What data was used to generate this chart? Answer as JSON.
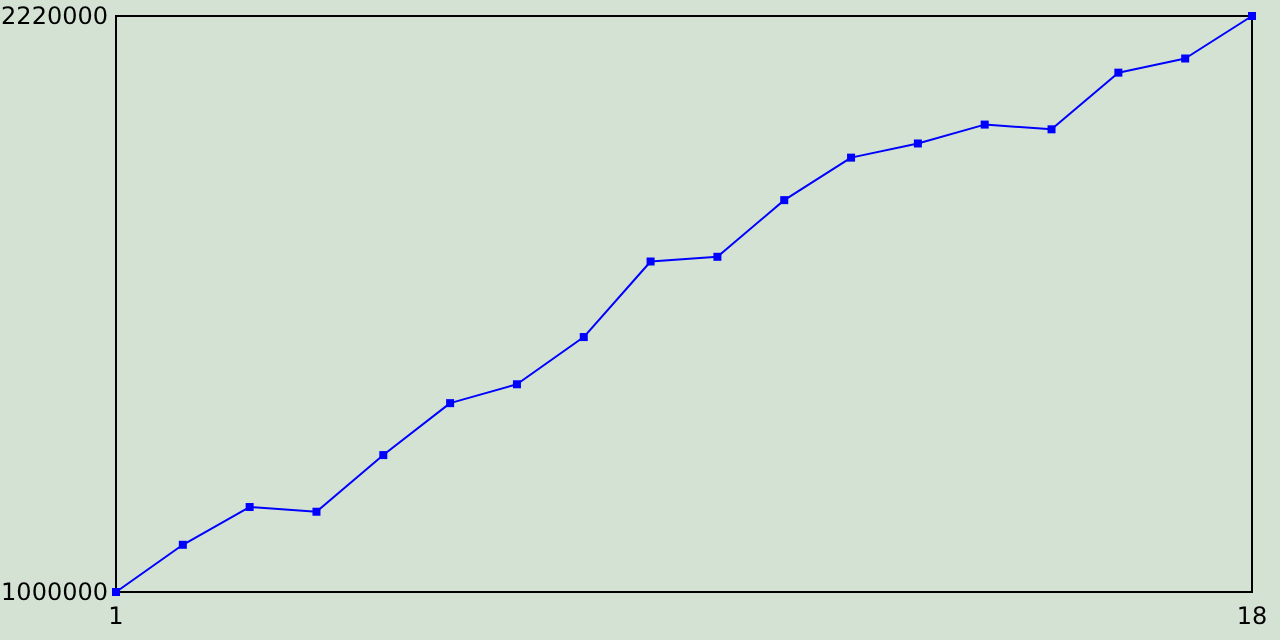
{
  "chart_data": {
    "type": "line",
    "x": [
      1,
      2,
      3,
      4,
      5,
      6,
      7,
      8,
      9,
      10,
      11,
      12,
      13,
      14,
      15,
      16,
      17,
      18
    ],
    "series": [
      {
        "color": "#0000ff",
        "values": [
          1000000,
          1100000,
          1180000,
          1170000,
          1290000,
          1400000,
          1440000,
          1540000,
          1700000,
          1710000,
          1830000,
          1920000,
          1950000,
          1990000,
          1980000,
          2100000,
          2130000,
          2220000
        ]
      }
    ],
    "xlim": [
      1,
      18
    ],
    "xticks": [
      1,
      18
    ],
    "ylim": [
      1000000,
      2220000
    ],
    "yticks": [
      1000000,
      2220000
    ],
    "marker": "square",
    "line_style": "solid"
  }
}
